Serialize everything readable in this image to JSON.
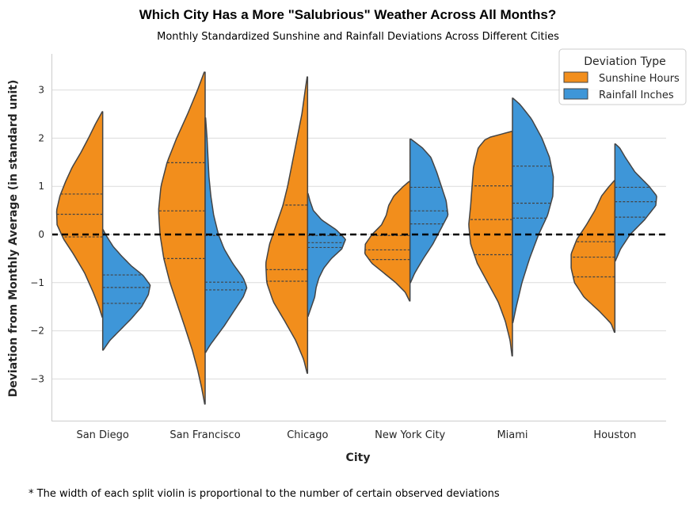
{
  "chart_data": {
    "type": "violin",
    "title": "Which City Has a More \"Salubrious\" Weather Across All Months?",
    "subtitle": "Monthly Standardized Sunshine and Rainfall Deviations Across Different Cities",
    "xlabel": "City",
    "ylabel": "Deviation from Monthly Average (in standard unit)",
    "ylim": [
      -3.85,
      3.75
    ],
    "yticks": [
      -3,
      -2,
      -1,
      0,
      1,
      2,
      3
    ],
    "grid": "horizontal",
    "reference_line": 0,
    "legend_title": "Deviation Type",
    "legend_position": "top-right",
    "footnote": "* The width of each split violin is proportional to the number of certain observed deviations",
    "categories": [
      "San Diego",
      "San Francisco",
      "Chicago",
      "New York City",
      "Miami",
      "Houston"
    ],
    "series": [
      {
        "name": "Sunshine Hours",
        "color": "#f28e1c",
        "side": "left",
        "violins": [
          {
            "range": [
              -1.72,
              2.55
            ],
            "quartiles": [
              -0.05,
              0.42,
              0.84
            ],
            "profile": [
              [
                -1.72,
                0.01
              ],
              [
                -1.5,
                0.08
              ],
              [
                -1.2,
                0.2
              ],
              [
                -0.8,
                0.38
              ],
              [
                -0.4,
                0.62
              ],
              [
                -0.1,
                0.82
              ],
              [
                0.2,
                0.96
              ],
              [
                0.5,
                0.97
              ],
              [
                0.8,
                0.9
              ],
              [
                1.1,
                0.78
              ],
              [
                1.4,
                0.64
              ],
              [
                1.7,
                0.46
              ],
              [
                2.0,
                0.3
              ],
              [
                2.3,
                0.15
              ],
              [
                2.55,
                0.01
              ]
            ]
          },
          {
            "range": [
              -3.52,
              3.37
            ],
            "quartiles": [
              -0.5,
              0.49,
              1.49
            ],
            "profile": [
              [
                -3.52,
                0.01
              ],
              [
                -3.2,
                0.07
              ],
              [
                -2.8,
                0.16
              ],
              [
                -2.4,
                0.27
              ],
              [
                -2.0,
                0.4
              ],
              [
                -1.5,
                0.57
              ],
              [
                -1.0,
                0.74
              ],
              [
                -0.5,
                0.87
              ],
              [
                0.0,
                0.95
              ],
              [
                0.5,
                0.98
              ],
              [
                1.0,
                0.93
              ],
              [
                1.5,
                0.8
              ],
              [
                2.0,
                0.6
              ],
              [
                2.5,
                0.37
              ],
              [
                3.0,
                0.16
              ],
              [
                3.37,
                0.02
              ]
            ]
          },
          {
            "range": [
              -2.88,
              3.27
            ],
            "quartiles": [
              -0.97,
              -0.73,
              0.61
            ],
            "profile": [
              [
                -2.88,
                0.01
              ],
              [
                -2.6,
                0.08
              ],
              [
                -2.2,
                0.25
              ],
              [
                -1.8,
                0.48
              ],
              [
                -1.4,
                0.72
              ],
              [
                -1.0,
                0.86
              ],
              [
                -0.6,
                0.88
              ],
              [
                -0.2,
                0.8
              ],
              [
                0.2,
                0.66
              ],
              [
                0.6,
                0.52
              ],
              [
                1.0,
                0.42
              ],
              [
                1.5,
                0.32
              ],
              [
                2.0,
                0.22
              ],
              [
                2.5,
                0.12
              ],
              [
                3.0,
                0.05
              ],
              [
                3.27,
                0.01
              ]
            ]
          },
          {
            "range": [
              -1.38,
              1.1
            ],
            "quartiles": [
              -0.52,
              -0.32,
              -0.02
            ],
            "profile": [
              [
                -1.38,
                0.01
              ],
              [
                -1.2,
                0.1
              ],
              [
                -1.0,
                0.3
              ],
              [
                -0.8,
                0.55
              ],
              [
                -0.6,
                0.8
              ],
              [
                -0.4,
                0.95
              ],
              [
                -0.2,
                0.94
              ],
              [
                0.0,
                0.8
              ],
              [
                0.2,
                0.6
              ],
              [
                0.4,
                0.5
              ],
              [
                0.6,
                0.45
              ],
              [
                0.8,
                0.34
              ],
              [
                1.0,
                0.14
              ],
              [
                1.1,
                0.02
              ]
            ]
          },
          {
            "range": [
              -2.52,
              2.14
            ],
            "quartiles": [
              -0.42,
              0.31,
              1.01
            ],
            "profile": [
              [
                -2.52,
                0.01
              ],
              [
                -2.2,
                0.05
              ],
              [
                -1.8,
                0.15
              ],
              [
                -1.4,
                0.3
              ],
              [
                -1.0,
                0.52
              ],
              [
                -0.6,
                0.74
              ],
              [
                -0.2,
                0.88
              ],
              [
                0.2,
                0.92
              ],
              [
                0.6,
                0.88
              ],
              [
                1.0,
                0.85
              ],
              [
                1.4,
                0.82
              ],
              [
                1.8,
                0.72
              ],
              [
                2.0,
                0.55
              ],
              [
                2.14,
                0.02
              ]
            ]
          },
          {
            "range": [
              -2.03,
              1.12
            ],
            "quartiles": [
              -0.88,
              -0.47,
              -0.15
            ],
            "profile": [
              [
                -2.03,
                0.01
              ],
              [
                -1.85,
                0.08
              ],
              [
                -1.6,
                0.32
              ],
              [
                -1.3,
                0.65
              ],
              [
                -1.0,
                0.85
              ],
              [
                -0.7,
                0.92
              ],
              [
                -0.4,
                0.92
              ],
              [
                -0.1,
                0.8
              ],
              [
                0.2,
                0.6
              ],
              [
                0.5,
                0.42
              ],
              [
                0.8,
                0.28
              ],
              [
                1.0,
                0.12
              ],
              [
                1.12,
                0.01
              ]
            ]
          }
        ]
      },
      {
        "name": "Rainfall Inches",
        "color": "#3e96d8",
        "side": "right",
        "violins": [
          {
            "range": [
              -2.4,
              0.1
            ],
            "quartiles": [
              -1.43,
              -1.1,
              -0.84
            ],
            "profile": [
              [
                -2.4,
                0.01
              ],
              [
                -2.2,
                0.15
              ],
              [
                -2.0,
                0.35
              ],
              [
                -1.75,
                0.6
              ],
              [
                -1.5,
                0.82
              ],
              [
                -1.25,
                0.96
              ],
              [
                -1.05,
                1.0
              ],
              [
                -0.85,
                0.85
              ],
              [
                -0.65,
                0.6
              ],
              [
                -0.45,
                0.4
              ],
              [
                -0.25,
                0.22
              ],
              [
                0.0,
                0.06
              ],
              [
                0.1,
                0.01
              ]
            ]
          },
          {
            "range": [
              -2.45,
              2.42
            ],
            "quartiles": [
              -1.15,
              -0.99,
              -0.02
            ],
            "profile": [
              [
                -2.45,
                0.01
              ],
              [
                -2.3,
                0.1
              ],
              [
                -2.1,
                0.25
              ],
              [
                -1.9,
                0.4
              ],
              [
                -1.6,
                0.6
              ],
              [
                -1.3,
                0.8
              ],
              [
                -1.1,
                0.88
              ],
              [
                -0.9,
                0.8
              ],
              [
                -0.6,
                0.58
              ],
              [
                -0.3,
                0.4
              ],
              [
                0.0,
                0.28
              ],
              [
                0.4,
                0.18
              ],
              [
                0.8,
                0.12
              ],
              [
                1.2,
                0.08
              ],
              [
                1.6,
                0.06
              ],
              [
                2.0,
                0.04
              ],
              [
                2.42,
                0.01
              ]
            ]
          },
          {
            "range": [
              -1.7,
              0.85
            ],
            "quartiles": [
              -0.27,
              -0.17,
              -0.02
            ],
            "profile": [
              [
                -1.7,
                0.01
              ],
              [
                -1.5,
                0.08
              ],
              [
                -1.3,
                0.15
              ],
              [
                -1.1,
                0.18
              ],
              [
                -0.9,
                0.24
              ],
              [
                -0.7,
                0.34
              ],
              [
                -0.5,
                0.5
              ],
              [
                -0.3,
                0.72
              ],
              [
                -0.1,
                0.8
              ],
              [
                0.1,
                0.6
              ],
              [
                0.3,
                0.3
              ],
              [
                0.5,
                0.12
              ],
              [
                0.7,
                0.05
              ],
              [
                0.85,
                0.01
              ]
            ]
          },
          {
            "range": [
              -1.0,
              1.98
            ],
            "quartiles": [
              0.22,
              0.49,
              0.98
            ],
            "profile": [
              [
                -1.0,
                0.01
              ],
              [
                -0.8,
                0.1
              ],
              [
                -0.5,
                0.28
              ],
              [
                -0.2,
                0.48
              ],
              [
                0.1,
                0.64
              ],
              [
                0.4,
                0.8
              ],
              [
                0.7,
                0.76
              ],
              [
                1.0,
                0.66
              ],
              [
                1.3,
                0.56
              ],
              [
                1.6,
                0.44
              ],
              [
                1.8,
                0.26
              ],
              [
                1.98,
                0.02
              ]
            ]
          },
          {
            "range": [
              -1.83,
              2.83
            ],
            "quartiles": [
              0.34,
              0.65,
              1.42
            ],
            "profile": [
              [
                -1.83,
                0.01
              ],
              [
                -1.5,
                0.08
              ],
              [
                -1.0,
                0.2
              ],
              [
                -0.5,
                0.36
              ],
              [
                0.0,
                0.55
              ],
              [
                0.4,
                0.74
              ],
              [
                0.8,
                0.85
              ],
              [
                1.2,
                0.86
              ],
              [
                1.6,
                0.78
              ],
              [
                2.0,
                0.62
              ],
              [
                2.4,
                0.4
              ],
              [
                2.7,
                0.16
              ],
              [
                2.83,
                0.01
              ]
            ]
          },
          {
            "range": [
              -0.55,
              1.88
            ],
            "quartiles": [
              0.36,
              0.68,
              0.98
            ],
            "profile": [
              [
                -0.55,
                0.01
              ],
              [
                -0.3,
                0.12
              ],
              [
                0.0,
                0.32
              ],
              [
                0.3,
                0.62
              ],
              [
                0.6,
                0.86
              ],
              [
                0.8,
                0.88
              ],
              [
                1.0,
                0.72
              ],
              [
                1.3,
                0.42
              ],
              [
                1.6,
                0.22
              ],
              [
                1.8,
                0.1
              ],
              [
                1.88,
                0.01
              ]
            ]
          }
        ]
      }
    ]
  }
}
